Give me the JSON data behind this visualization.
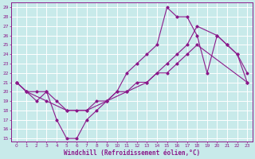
{
  "xlabel": "Windchill (Refroidissement éolien,°C)",
  "xlim": [
    -0.5,
    23.5
  ],
  "ylim": [
    14.7,
    29.5
  ],
  "xticks": [
    0,
    1,
    2,
    3,
    4,
    5,
    6,
    7,
    8,
    9,
    10,
    11,
    12,
    13,
    14,
    15,
    16,
    17,
    18,
    19,
    20,
    21,
    22,
    23
  ],
  "yticks": [
    15,
    16,
    17,
    18,
    19,
    20,
    21,
    22,
    23,
    24,
    25,
    26,
    27,
    28,
    29
  ],
  "bg_color": "#c8eaea",
  "line_color": "#8b1a8b",
  "grid_color": "#ffffff",
  "line1_x": [
    0,
    1,
    2,
    3,
    4,
    5,
    6,
    7,
    8,
    9,
    10,
    11,
    12,
    13,
    14,
    15,
    16,
    17,
    18,
    19,
    20,
    21,
    22,
    23
  ],
  "line1_y": [
    21,
    20,
    19,
    20,
    17,
    15,
    15,
    17,
    18,
    19,
    20,
    22,
    23,
    24,
    25,
    29,
    28,
    28,
    26,
    22,
    26,
    25,
    24,
    22
  ],
  "line2_x": [
    0,
    1,
    3,
    5,
    7,
    9,
    11,
    13,
    15,
    16,
    17,
    18,
    20,
    21,
    22,
    23
  ],
  "line2_y": [
    21,
    20,
    19,
    18,
    18,
    19,
    20,
    21,
    23,
    24,
    25,
    27,
    26,
    25,
    24,
    21
  ],
  "line3_x": [
    0,
    1,
    2,
    3,
    4,
    5,
    6,
    7,
    8,
    9,
    10,
    11,
    12,
    13,
    14,
    15,
    16,
    17,
    18,
    23
  ],
  "line3_y": [
    21,
    20,
    20,
    20,
    19,
    18,
    18,
    18,
    19,
    19,
    20,
    20,
    21,
    21,
    22,
    22,
    23,
    24,
    25,
    21
  ]
}
